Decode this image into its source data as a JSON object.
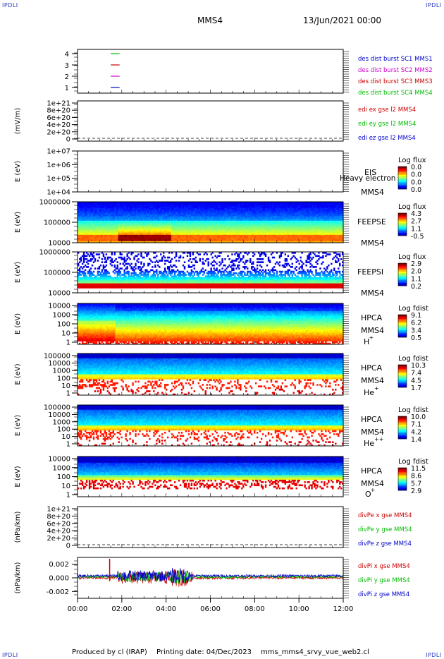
{
  "corners": {
    "tl": "IPDLI",
    "tr": "IPDLI",
    "bl": "IPDLI",
    "br": "IPDLI"
  },
  "header": {
    "spacecraft": "MMS4",
    "datetime": "13/Jun/2021 00:00"
  },
  "footer": {
    "produced_by": "Produced by cl (IRAP)",
    "printing_date": "Printing date: 04/Dec/2023",
    "script": "mms_mms4_srvy_vue_web2.cl"
  },
  "colors": {
    "mms1": "#0000cc",
    "mms2": "#cc00cc",
    "mms3": "#cc0000",
    "mms4": "#00bb00",
    "x": "#cc0000",
    "y": "#00bb00",
    "z": "#0000cc"
  },
  "chart_data": [
    {
      "id": "burst",
      "type": "line",
      "yticks": [
        "4",
        "3",
        "2",
        "1"
      ],
      "legend": [
        {
          "text": "des dist burst SC1 MMS1",
          "color": "#0000cc"
        },
        {
          "text": "des dist burst SC2 MMS2",
          "color": "#cc00cc"
        },
        {
          "text": "des dist burst SC3 MMS3",
          "color": "#cc0000"
        },
        {
          "text": "des dist burst SC4 MMS4",
          "color": "#00bb00"
        }
      ],
      "segments": [
        {
          "y": 4,
          "x": [
            1.5,
            1.9
          ],
          "color": "#00bb00"
        },
        {
          "y": 3,
          "x": [
            1.5,
            1.9
          ],
          "color": "#cc0000"
        },
        {
          "y": 2,
          "x": [
            1.5,
            1.9
          ],
          "color": "#cc00cc"
        },
        {
          "y": 1,
          "x": [
            1.5,
            1.9
          ],
          "color": "#0000cc"
        }
      ]
    },
    {
      "id": "edi",
      "type": "line",
      "ylabel": "(mV/m)",
      "yticks": [
        "1e+21",
        "8e+20",
        "6e+20",
        "4e+20",
        "2e+20",
        "0"
      ],
      "legend": [
        {
          "text": "edi ex gse l2 MMS4",
          "color": "#cc0000"
        },
        {
          "text": "edi ey gse l2 MMS4",
          "color": "#00bb00"
        },
        {
          "text": "edi ez gse l2 MMS4",
          "color": "#0000cc"
        }
      ]
    },
    {
      "id": "eis",
      "type": "heatmap",
      "ylabel": "E (eV)",
      "yticks": [
        "1e+07",
        "1e+06",
        "1e+05",
        "1e+04"
      ],
      "labels": [
        "EIS",
        "MMS4"
      ],
      "overlay": "Heavy electron to",
      "cbar_title": "Log flux",
      "cbar_ticks": [
        "0.0",
        "0.0",
        "0.0",
        "0.0"
      ]
    },
    {
      "id": "feepse",
      "type": "heatmap",
      "ylabel": "E (eV)",
      "yticks": [
        "1000000",
        "100000",
        "10000"
      ],
      "labels": [
        "FEEPSE",
        "MMS4"
      ],
      "cbar_title": "Log flux",
      "cbar_ticks": [
        "4.3",
        "2.7",
        "1.1",
        "-0.5"
      ]
    },
    {
      "id": "feepsi",
      "type": "heatmap",
      "ylabel": "E (eV)",
      "yticks": [
        "1000000",
        "100000",
        "10000"
      ],
      "labels": [
        "FEEPSI",
        "MMS4"
      ],
      "cbar_title": "Log flux",
      "cbar_ticks": [
        "2.9",
        "2.0",
        "1.1",
        "0.2"
      ]
    },
    {
      "id": "hpca_h",
      "type": "heatmap",
      "ylabel": "E (eV)",
      "yticks": [
        "10000",
        "1000",
        "100",
        "10",
        "1"
      ],
      "labels": [
        "HPCA",
        "MMS4"
      ],
      "species": "H",
      "charge": "+",
      "cbar_title": "Log fdist",
      "cbar_ticks": [
        "9.1",
        "6.2",
        "3.4",
        "0.5"
      ]
    },
    {
      "id": "hpca_he1",
      "type": "heatmap",
      "ylabel": "E (eV)",
      "yticks": [
        "100000",
        "10000",
        "1000",
        "100",
        "10",
        "1"
      ],
      "labels": [
        "HPCA",
        "MMS4"
      ],
      "species": "He",
      "charge": "+",
      "cbar_title": "Log fdist",
      "cbar_ticks": [
        "10.3",
        "7.4",
        "4.5",
        "1.7"
      ]
    },
    {
      "id": "hpca_he2",
      "type": "heatmap",
      "ylabel": "E (eV)",
      "yticks": [
        "100000",
        "10000",
        "1000",
        "100",
        "10",
        "1"
      ],
      "labels": [
        "HPCA",
        "MMS4"
      ],
      "species": "He",
      "charge": "++",
      "cbar_title": "Log fdist",
      "cbar_ticks": [
        "10.0",
        "7.1",
        "4.2",
        "1.4"
      ]
    },
    {
      "id": "hpca_o",
      "type": "heatmap",
      "ylabel": "E (eV)",
      "yticks": [
        "10000",
        "1000",
        "100",
        "10",
        "1"
      ],
      "labels": [
        "HPCA",
        "MMS4"
      ],
      "species": "O",
      "charge": "+",
      "cbar_title": "Log fdist",
      "cbar_ticks": [
        "11.5",
        "8.6",
        "5.7",
        "2.9"
      ]
    },
    {
      "id": "divpe",
      "type": "line",
      "ylabel": "(nPa/km)",
      "yticks": [
        "1e+21",
        "8e+20",
        "6e+20",
        "4e+20",
        "2e+20",
        "0"
      ],
      "legend": [
        {
          "text": "divPe x gse MMS4",
          "color": "#cc0000"
        },
        {
          "text": "divPe y gse MMS4",
          "color": "#00bb00"
        },
        {
          "text": "divPe z gse MMS4",
          "color": "#0000cc"
        }
      ]
    },
    {
      "id": "divpi",
      "type": "line",
      "ylabel": "(nPa/km)",
      "yticks": [
        "0.002",
        "0.000",
        "-0.002"
      ],
      "ylim": [
        -0.003,
        0.003
      ],
      "legend": [
        {
          "text": "divPi x gse MMS4",
          "color": "#cc0000"
        },
        {
          "text": "divPi y gse MMS4",
          "color": "#00bb00"
        },
        {
          "text": "divPi z gse MMS4",
          "color": "#0000cc"
        }
      ]
    }
  ],
  "xaxis": {
    "ticks": [
      "00:00",
      "02:00",
      "04:00",
      "06:00",
      "08:00",
      "10:00",
      "12:00"
    ],
    "range_hours": [
      0,
      12
    ]
  }
}
